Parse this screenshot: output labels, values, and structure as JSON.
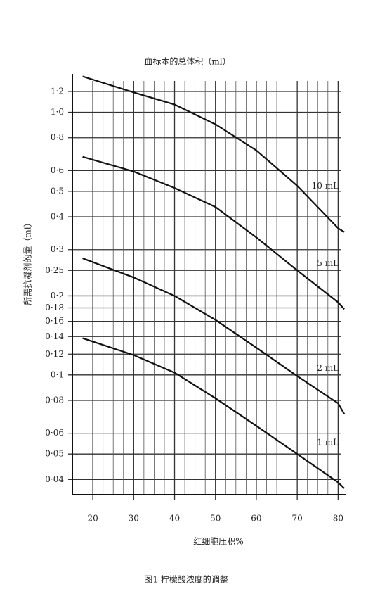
{
  "chart_data": {
    "type": "line",
    "title": "血标本的总体积（ml）",
    "x_label": "红细胞压积%",
    "y_label": "所需抗凝剂的量（ml）",
    "caption": "图1 柠檬酸浓度的调整",
    "x": [
      17.5,
      30,
      40,
      50,
      60,
      70,
      80,
      81.5
    ],
    "series": [
      {
        "name": "10 mL",
        "color": "#111111",
        "values": [
          1.37,
          1.19,
          1.07,
          0.9,
          0.716,
          0.525,
          0.362,
          0.35
        ]
      },
      {
        "name": "5 mL",
        "color": "#111111",
        "values": [
          0.677,
          0.595,
          0.515,
          0.436,
          0.334,
          0.25,
          0.189,
          0.178
        ]
      },
      {
        "name": "2 mL",
        "color": "#111111",
        "values": [
          0.278,
          0.235,
          0.2,
          0.162,
          0.127,
          0.099,
          0.078,
          0.071
        ]
      },
      {
        "name": "1 mL",
        "color": "#111111",
        "values": [
          0.138,
          0.119,
          0.102,
          0.0815,
          0.064,
          0.05,
          0.039,
          0.037
        ]
      }
    ],
    "xlim": [
      15,
      82
    ],
    "xticks": [
      20,
      30,
      40,
      50,
      60,
      70,
      80
    ],
    "ylim": [
      0.035,
      1.4
    ],
    "log_y": true,
    "grid": true,
    "yticks": [
      {
        "value": 1.2,
        "label": "1·2"
      },
      {
        "value": 1.0,
        "label": "1·0"
      },
      {
        "value": 0.8,
        "label": "0·8"
      },
      {
        "value": 0.6,
        "label": "0·6"
      },
      {
        "value": 0.5,
        "label": "0·5"
      },
      {
        "value": 0.4,
        "label": "0·4"
      },
      {
        "value": 0.3,
        "label": "0·3"
      },
      {
        "value": 0.25,
        "label": "0·25"
      },
      {
        "value": 0.2,
        "label": "0·2"
      },
      {
        "value": 0.18,
        "label": "0·18"
      },
      {
        "value": 0.16,
        "label": "0·16"
      },
      {
        "value": 0.14,
        "label": "0·14"
      },
      {
        "value": 0.12,
        "label": "0·12"
      },
      {
        "value": 0.1,
        "label": "0·1"
      },
      {
        "value": 0.08,
        "label": "0·08"
      },
      {
        "value": 0.06,
        "label": "0·06"
      },
      {
        "value": 0.05,
        "label": "0·05"
      },
      {
        "value": 0.04,
        "label": "0·04"
      }
    ]
  }
}
